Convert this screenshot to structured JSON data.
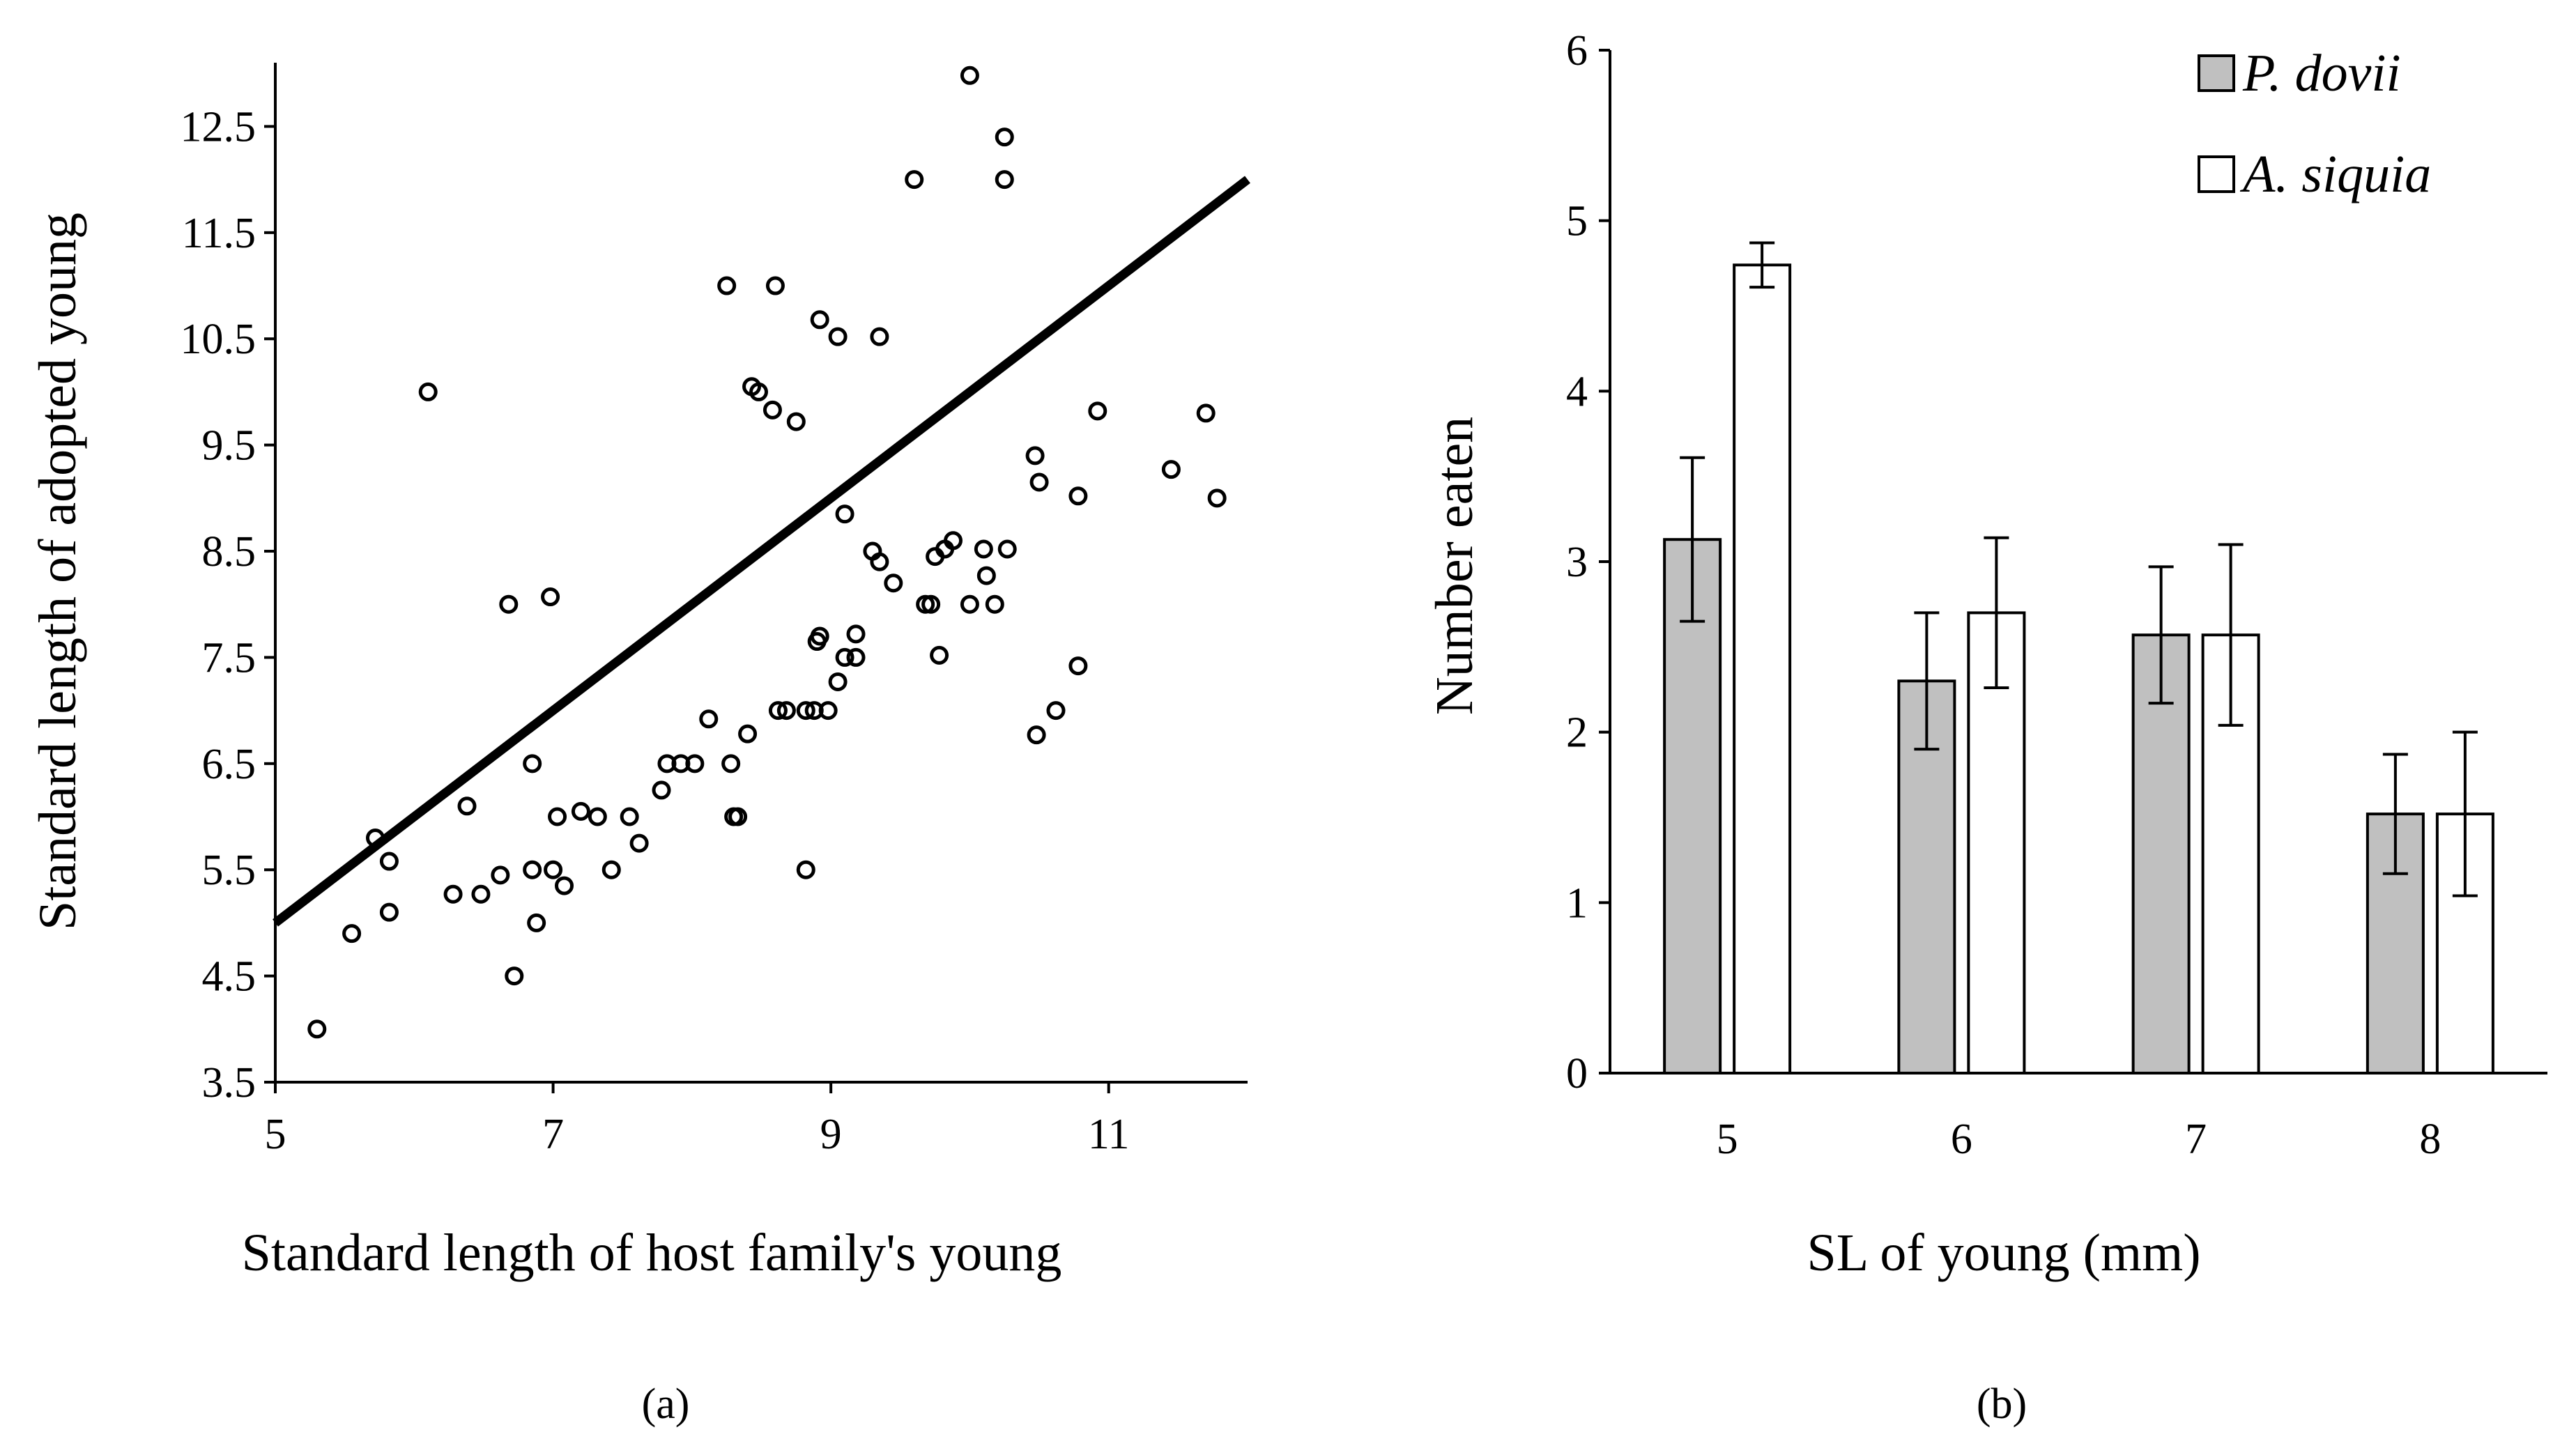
{
  "chart_data": [
    {
      "type": "scatter",
      "panel_label": "(a)",
      "title": "",
      "xlabel": "Standard length of host family's young",
      "ylabel": "Standard length of adopted young",
      "xlim": [
        5,
        12
      ],
      "ylim": [
        3.5,
        13.1
      ],
      "xticks": [
        5,
        7,
        9,
        11
      ],
      "yticks": [
        3.5,
        4.5,
        5.5,
        6.5,
        7.5,
        8.5,
        9.5,
        10.5,
        11.5,
        12.5
      ],
      "ytick_labels": [
        "3.5",
        "4.5",
        "5.5",
        "6.5",
        "7.5",
        "8.5",
        "9.5",
        "10.5",
        "11.5",
        "12.5"
      ],
      "grid": false,
      "marker": "open-circle",
      "points": [
        [
          5.3,
          4.0
        ],
        [
          5.55,
          4.9
        ],
        [
          5.72,
          5.8
        ],
        [
          5.82,
          5.58
        ],
        [
          5.82,
          5.1
        ],
        [
          6.1,
          10.0
        ],
        [
          6.28,
          5.27
        ],
        [
          6.38,
          6.1
        ],
        [
          6.48,
          5.27
        ],
        [
          6.62,
          5.45
        ],
        [
          6.68,
          8.0
        ],
        [
          6.72,
          4.5
        ],
        [
          6.85,
          6.5
        ],
        [
          6.85,
          5.5
        ],
        [
          6.88,
          5.0
        ],
        [
          6.98,
          8.07
        ],
        [
          7.0,
          5.5
        ],
        [
          7.03,
          6.0
        ],
        [
          7.08,
          5.35
        ],
        [
          7.2,
          6.05
        ],
        [
          7.32,
          6.0
        ],
        [
          7.42,
          5.5
        ],
        [
          7.55,
          6.0
        ],
        [
          7.62,
          5.75
        ],
        [
          7.78,
          6.25
        ],
        [
          7.82,
          6.5
        ],
        [
          7.92,
          6.5
        ],
        [
          8.02,
          6.5
        ],
        [
          8.12,
          6.92
        ],
        [
          8.25,
          11.0
        ],
        [
          8.28,
          6.5
        ],
        [
          8.3,
          6.0
        ],
        [
          8.33,
          6.0
        ],
        [
          8.4,
          6.78
        ],
        [
          8.43,
          10.05
        ],
        [
          8.48,
          10.0
        ],
        [
          8.58,
          9.83
        ],
        [
          8.6,
          11.0
        ],
        [
          8.62,
          7.0
        ],
        [
          8.68,
          7.0
        ],
        [
          8.75,
          9.72
        ],
        [
          8.82,
          5.5
        ],
        [
          8.82,
          7.0
        ],
        [
          8.88,
          7.0
        ],
        [
          8.9,
          7.65
        ],
        [
          8.92,
          7.7
        ],
        [
          8.92,
          10.68
        ],
        [
          8.98,
          7.0
        ],
        [
          9.05,
          7.27
        ],
        [
          9.05,
          10.52
        ],
        [
          9.1,
          7.5
        ],
        [
          9.1,
          8.85
        ],
        [
          9.18,
          7.72
        ],
        [
          9.18,
          7.5
        ],
        [
          9.3,
          8.5
        ],
        [
          9.35,
          10.52
        ],
        [
          9.35,
          8.4
        ],
        [
          9.45,
          8.2
        ],
        [
          9.6,
          12.0
        ],
        [
          9.68,
          8.0
        ],
        [
          9.72,
          8.0
        ],
        [
          9.75,
          8.45
        ],
        [
          9.78,
          7.52
        ],
        [
          9.82,
          8.52
        ],
        [
          9.88,
          8.6
        ],
        [
          10.0,
          12.98
        ],
        [
          10.0,
          8.0
        ],
        [
          10.1,
          8.52
        ],
        [
          10.12,
          8.27
        ],
        [
          10.18,
          8.0
        ],
        [
          10.25,
          12.4
        ],
        [
          10.25,
          12.0
        ],
        [
          10.27,
          8.52
        ],
        [
          10.47,
          9.4
        ],
        [
          10.48,
          6.77
        ],
        [
          10.5,
          9.15
        ],
        [
          10.62,
          7.0
        ],
        [
          10.78,
          9.02
        ],
        [
          10.78,
          7.42
        ],
        [
          10.92,
          9.82
        ],
        [
          11.45,
          9.27
        ],
        [
          11.7,
          9.8
        ],
        [
          11.78,
          9.0
        ]
      ],
      "trend_line": {
        "x": [
          5,
          12
        ],
        "y": [
          5.0,
          12.0
        ]
      }
    },
    {
      "type": "bar",
      "panel_label": "(b)",
      "title": "",
      "xlabel": "SL of young (mm)",
      "ylabel": "Number eaten",
      "categories": [
        "5",
        "6",
        "7",
        "8"
      ],
      "ylim": [
        0,
        6
      ],
      "yticks": [
        0,
        1,
        2,
        3,
        4,
        5,
        6
      ],
      "grid": false,
      "legend": {
        "position": "top-right"
      },
      "series": [
        {
          "name": "P. dovii",
          "color": "#c0c0c0",
          "values": [
            3.13,
            2.3,
            2.57,
            1.52
          ],
          "errors": [
            0.48,
            0.4,
            0.4,
            0.35
          ]
        },
        {
          "name": "A. siquia",
          "color": "#ffffff",
          "values": [
            4.74,
            2.7,
            2.57,
            1.52
          ],
          "errors": [
            0.13,
            0.44,
            0.53,
            0.48
          ]
        }
      ]
    }
  ]
}
